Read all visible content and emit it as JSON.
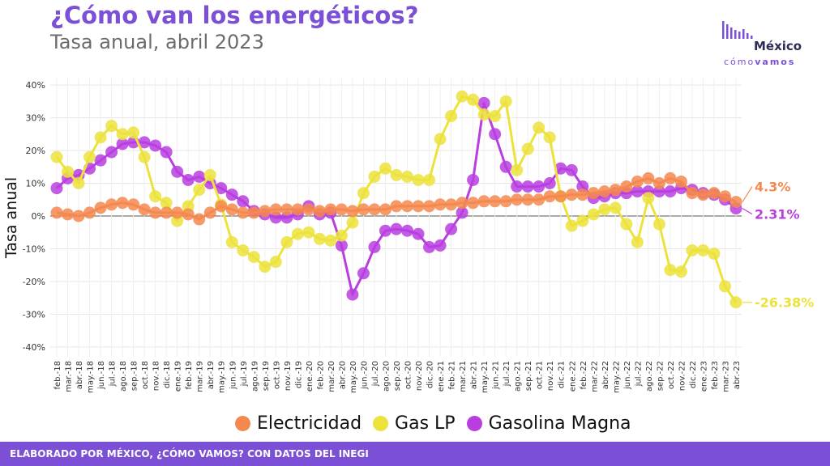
{
  "header": {
    "title": "¿Cómo van los energéticos?",
    "subtitle": "Tasa anual, abril 2023"
  },
  "logo": {
    "word": "México",
    "sub_a": "cómo",
    "sub_b": "vamos"
  },
  "footer": {
    "text": "ELABORADO POR MÉXICO, ¿CÓMO VAMOS? CON DATOS DEL INEGI"
  },
  "chart_data": {
    "type": "line",
    "ylabel": "Tasa anual",
    "xlabel": "",
    "ylim": [
      -0.43,
      0.42
    ],
    "yticks": [
      -0.4,
      -0.3,
      -0.2,
      -0.1,
      0,
      0.1,
      0.2,
      0.3,
      0.4
    ],
    "ytick_labels": [
      "-40%",
      "-30%",
      "-20%",
      "-10%",
      "0%",
      "10%",
      "20%",
      "30%",
      "40%"
    ],
    "grid": true,
    "legend_position": "bottom",
    "categories": [
      "feb.-18",
      "mar.-18",
      "abr.-18",
      "may.-18",
      "jun.-18",
      "jul.-18",
      "ago.-18",
      "sep.-18",
      "oct.-18",
      "nov.-18",
      "dic.-18",
      "ene.-19",
      "feb.-19",
      "mar.-19",
      "abr.-19",
      "may.-19",
      "jun.-19",
      "jul.-19",
      "ago.-19",
      "sep.-19",
      "oct.-19",
      "nov.-19",
      "dic.-19",
      "ene.-20",
      "feb.-20",
      "mar.-20",
      "abr.-20",
      "may.-20",
      "jun.-20",
      "jul.-20",
      "ago.-20",
      "sep.-20",
      "oct.-20",
      "nov.-20",
      "dic.-20",
      "ene.-21",
      "feb.-21",
      "mar.-21",
      "abr.-21",
      "may.-21",
      "jun.-21",
      "jul.-21",
      "ago.-21",
      "sep.-21",
      "oct.-21",
      "nov.-21",
      "dic.-21",
      "ene.-22",
      "feb.-22",
      "mar.-22",
      "abr.-22",
      "may.-22",
      "jun.-22",
      "jul.-22",
      "ago.-22",
      "sep.-22",
      "oct.-22",
      "nov.-22",
      "dic.-22",
      "ene.-23",
      "feb.-23",
      "mar.-23",
      "abr.-23"
    ],
    "series": [
      {
        "name": "Electricidad",
        "color": "#f5884f",
        "values": [
          0.01,
          0.005,
          0.0,
          0.01,
          0.025,
          0.035,
          0.04,
          0.035,
          0.02,
          0.01,
          0.01,
          0.01,
          0.005,
          -0.01,
          0.01,
          0.03,
          0.02,
          0.01,
          0.01,
          0.015,
          0.02,
          0.02,
          0.02,
          0.02,
          0.015,
          0.02,
          0.02,
          0.015,
          0.02,
          0.02,
          0.02,
          0.03,
          0.03,
          0.03,
          0.03,
          0.035,
          0.035,
          0.04,
          0.04,
          0.045,
          0.045,
          0.045,
          0.05,
          0.05,
          0.05,
          0.06,
          0.06,
          0.065,
          0.065,
          0.07,
          0.075,
          0.08,
          0.09,
          0.105,
          0.115,
          0.1,
          0.115,
          0.105,
          0.07,
          0.065,
          0.07,
          0.06,
          0.043
        ]
      },
      {
        "name": "Gas LP",
        "color": "#ece23c",
        "values": [
          0.18,
          0.135,
          0.1,
          0.18,
          0.24,
          0.275,
          0.25,
          0.255,
          0.18,
          0.06,
          0.04,
          -0.015,
          0.03,
          0.08,
          0.125,
          0.035,
          -0.08,
          -0.105,
          -0.125,
          -0.155,
          -0.14,
          -0.08,
          -0.055,
          -0.05,
          -0.07,
          -0.075,
          -0.06,
          -0.02,
          0.07,
          0.12,
          0.145,
          0.125,
          0.12,
          0.11,
          0.11,
          0.235,
          0.305,
          0.365,
          0.355,
          0.31,
          0.305,
          0.35,
          0.14,
          0.205,
          0.27,
          0.24,
          0.06,
          -0.03,
          -0.015,
          0.005,
          0.02,
          0.025,
          -0.025,
          -0.08,
          0.055,
          -0.025,
          -0.165,
          -0.17,
          -0.105,
          -0.105,
          -0.115,
          -0.215,
          -0.2638
        ]
      },
      {
        "name": "Gasolina Magna",
        "color": "#b93ee0",
        "values": [
          0.085,
          0.115,
          0.125,
          0.145,
          0.17,
          0.195,
          0.22,
          0.225,
          0.225,
          0.215,
          0.195,
          0.135,
          0.11,
          0.12,
          0.1,
          0.085,
          0.065,
          0.045,
          0.015,
          0.005,
          -0.005,
          -0.005,
          0.005,
          0.03,
          0.005,
          0.01,
          -0.09,
          -0.24,
          -0.175,
          -0.095,
          -0.045,
          -0.04,
          -0.045,
          -0.055,
          -0.095,
          -0.09,
          -0.04,
          0.01,
          0.11,
          0.345,
          0.25,
          0.15,
          0.09,
          0.09,
          0.09,
          0.1,
          0.145,
          0.14,
          0.09,
          0.055,
          0.06,
          0.07,
          0.07,
          0.075,
          0.075,
          0.075,
          0.075,
          0.085,
          0.08,
          0.07,
          0.065,
          0.05,
          0.0231
        ]
      }
    ],
    "end_labels": [
      "4.3%",
      "-26.38%",
      "2.31%"
    ]
  }
}
